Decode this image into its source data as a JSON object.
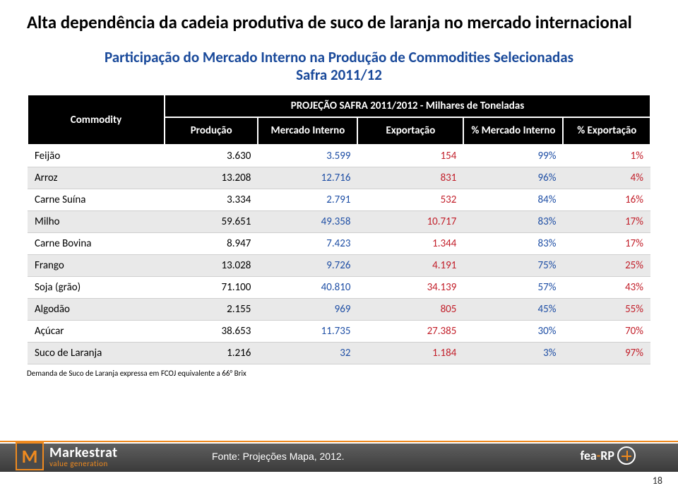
{
  "title": "Alta dependência da cadeia produtiva de suco de laranja no mercado internacional",
  "subtitle_line1": "Participação do Mercado Interno na Produção de Commodities Selecionadas",
  "subtitle_line2": "Safra 2011/12",
  "table": {
    "superheader": "PROJEÇÃO SAFRA 2011/2012 - Milhares de Toneladas",
    "columns": {
      "commodity": "Commodity",
      "producao": "Produção",
      "mercado_interno": "Mercado Interno",
      "exportacao": "Exportação",
      "pct_mercado_interno": "% Mercado Interno",
      "pct_exportacao": "% Exportação"
    },
    "rows": [
      {
        "name": "Feijão",
        "producao": "3.630",
        "mi": "3.599",
        "exp": "154",
        "pmi": "99%",
        "pexp": "1%",
        "alt": false
      },
      {
        "name": "Arroz",
        "producao": "13.208",
        "mi": "12.716",
        "exp": "831",
        "pmi": "96%",
        "pexp": "4%",
        "alt": true
      },
      {
        "name": "Carne Suína",
        "producao": "3.334",
        "mi": "2.791",
        "exp": "532",
        "pmi": "84%",
        "pexp": "16%",
        "alt": false
      },
      {
        "name": "Milho",
        "producao": "59.651",
        "mi": "49.358",
        "exp": "10.717",
        "pmi": "83%",
        "pexp": "17%",
        "alt": true
      },
      {
        "name": "Carne Bovina",
        "producao": "8.947",
        "mi": "7.423",
        "exp": "1.344",
        "pmi": "83%",
        "pexp": "17%",
        "alt": false
      },
      {
        "name": "Frango",
        "producao": "13.028",
        "mi": "9.726",
        "exp": "4.191",
        "pmi": "75%",
        "pexp": "25%",
        "alt": true
      },
      {
        "name": "Soja (grão)",
        "producao": "71.100",
        "mi": "40.810",
        "exp": "34.139",
        "pmi": "57%",
        "pexp": "43%",
        "alt": false
      },
      {
        "name": "Algodão",
        "producao": "2.155",
        "mi": "969",
        "exp": "805",
        "pmi": "45%",
        "pexp": "55%",
        "alt": true
      },
      {
        "name": "Açúcar",
        "producao": "38.653",
        "mi": "11.735",
        "exp": "27.385",
        "pmi": "30%",
        "pexp": "70%",
        "alt": false
      },
      {
        "name": "Suco de Laranja",
        "producao": "1.216",
        "mi": "32",
        "exp": "1.184",
        "pmi": "3%",
        "pexp": "97%",
        "alt": true
      }
    ]
  },
  "footnote": "Demanda de Suco de Laranja expressa em FCOJ equivalente a 66° Brix",
  "footer": {
    "source": "Fonte: Projeções Mapa, 2012.",
    "pagenum": "18",
    "brand_letter": "M",
    "brand_name": "Markestrat",
    "brand_tag": "value generation",
    "right_text_a": "fea",
    "right_text_b": "RP"
  },
  "colors": {
    "title": "#000000",
    "subtitle": "#19499a",
    "header_bg": "#000000",
    "header_fg": "#ffffff",
    "row_alt_bg": "#e9e9e9",
    "val_blue": "#1f4fa5",
    "val_red": "#c21f2a",
    "accent_orange": "#ef8a1f",
    "footer_bar": "#4a4a4a"
  }
}
